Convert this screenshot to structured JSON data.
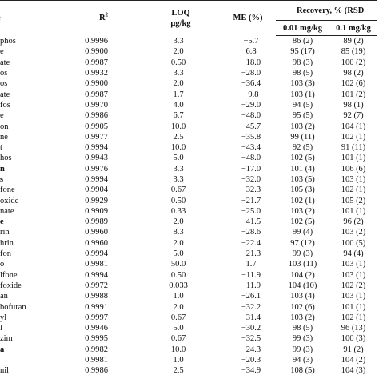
{
  "header": {
    "r2_base": "R",
    "r2_sup": "2",
    "loq_line1": "LOQ",
    "loq_line2": "μg/kg",
    "me": "ME (%)",
    "recovery_group": "Recovery, % (RSD",
    "rec_001": "0.01 mg/kg",
    "rec_01": "0.1 mg/kg",
    "name_partial": "e"
  },
  "rows": [
    {
      "name": "phos",
      "bold": false,
      "r2": "0.9996",
      "loq": "3.3",
      "me": "−5.7",
      "rec1": "86 (2)",
      "rec2": "89 (2)"
    },
    {
      "name": "e",
      "bold": false,
      "r2": "0.9900",
      "loq": "2.0",
      "me": "6.8",
      "rec1": "95 (17)",
      "rec2": "85 (19)"
    },
    {
      "name": "ate",
      "bold": false,
      "r2": "0.9987",
      "loq": "0.50",
      "me": "−18.0",
      "rec1": "98 (3)",
      "rec2": "100 (2)"
    },
    {
      "name": "os",
      "bold": false,
      "r2": "0.9932",
      "loq": "3.3",
      "me": "−28.0",
      "rec1": "98 (5)",
      "rec2": "98 (2)"
    },
    {
      "name": "os",
      "bold": false,
      "r2": "0.9900",
      "loq": "2.0",
      "me": "−36.4",
      "rec1": "103 (3)",
      "rec2": "102 (6)"
    },
    {
      "name": "ate",
      "bold": false,
      "r2": "0.9987",
      "loq": "1.7",
      "me": "−9.8",
      "rec1": "103 (1)",
      "rec2": "101 (2)"
    },
    {
      "name": "fos",
      "bold": false,
      "r2": "0.9970",
      "loq": "4.0",
      "me": "−29.0",
      "rec1": "94 (5)",
      "rec2": "98 (1)"
    },
    {
      "name": "e",
      "bold": false,
      "r2": "0.9986",
      "loq": "6.7",
      "me": "−48.0",
      "rec1": "95 (5)",
      "rec2": "92 (7)"
    },
    {
      "name": "on",
      "bold": false,
      "r2": "0.9905",
      "loq": "10.0",
      "me": "−45.7",
      "rec1": "103 (2)",
      "rec2": "104 (1)"
    },
    {
      "name": "ne",
      "bold": false,
      "r2": "0.9977",
      "loq": "2.5",
      "me": "−35.8",
      "rec1": "99 (11)",
      "rec2": "102 (1)"
    },
    {
      "name": "t",
      "bold": false,
      "r2": "0.9994",
      "loq": "10.0",
      "me": "−43.4",
      "rec1": "92 (5)",
      "rec2": "91 (11)"
    },
    {
      "name": "hos",
      "bold": false,
      "r2": "0.9943",
      "loq": "5.0",
      "me": "−48.0",
      "rec1": "102 (5)",
      "rec2": "101 (1)"
    },
    {
      "name": "n",
      "bold": true,
      "r2": "0.9976",
      "loq": "3.3",
      "me": "−17.0",
      "rec1": "101 (4)",
      "rec2": "106 (6)"
    },
    {
      "name": "s",
      "bold": true,
      "r2": "0.9994",
      "loq": "3.3",
      "me": "−32.0",
      "rec1": "103 (5)",
      "rec2": "103 (1)"
    },
    {
      "name": "fone",
      "bold": false,
      "r2": "0.9904",
      "loq": "0.67",
      "me": "−32.3",
      "rec1": "105 (3)",
      "rec2": "102 (1)"
    },
    {
      "name": "oxide",
      "bold": false,
      "r2": "0.9929",
      "loq": "0.50",
      "me": "−21.7",
      "rec1": "102 (1)",
      "rec2": "105 (2)"
    },
    {
      "name": "nate",
      "bold": false,
      "r2": "0.9909",
      "loq": "0.33",
      "me": "−25.0",
      "rec1": "103 (2)",
      "rec2": "101 (1)"
    },
    {
      "name": "e",
      "bold": true,
      "r2": "0.9989",
      "loq": "2.0",
      "me": "−41.5",
      "rec1": "102 (5)",
      "rec2": "96 (2)"
    },
    {
      "name": "rin",
      "bold": false,
      "r2": "0.9960",
      "loq": "8.3",
      "me": "−28.6",
      "rec1": "99 (4)",
      "rec2": "103 (2)"
    },
    {
      "name": "hrin",
      "bold": false,
      "r2": "0.9960",
      "loq": "2.0",
      "me": "−22.4",
      "rec1": "97 (12)",
      "rec2": "100 (5)"
    },
    {
      "name": "fon",
      "bold": false,
      "r2": "0.9994",
      "loq": "5.0",
      "me": "−21.3",
      "rec1": "99 (3)",
      "rec2": "94 (4)"
    },
    {
      "name": "o",
      "bold": false,
      "r2": "0.9981",
      "loq": "50.0",
      "me": "1.7",
      "rec1": "103 (11)",
      "rec2": "103 (1)"
    },
    {
      "name": "lfone",
      "bold": false,
      "r2": "0.9994",
      "loq": "0.50",
      "me": "−11.9",
      "rec1": "104 (2)",
      "rec2": "103 (1)"
    },
    {
      "name": "foxide",
      "bold": false,
      "r2": "0.9972",
      "loq": "0.033",
      "me": "−11.9",
      "rec1": "104 (10)",
      "rec2": "102 (2)"
    },
    {
      "name": "an",
      "bold": false,
      "r2": "0.9988",
      "loq": "1.0",
      "me": "−26.1",
      "rec1": "103 (4)",
      "rec2": "103 (1)"
    },
    {
      "name": "bofuran",
      "bold": false,
      "r2": "0.9991",
      "loq": "2.0",
      "me": "−32.2",
      "rec1": "102 (6)",
      "rec2": "101 (1)"
    },
    {
      "name": "yl",
      "bold": false,
      "r2": "0.9997",
      "loq": "0.67",
      "me": "−31.4",
      "rec1": "103 (2)",
      "rec2": "102 (1)"
    },
    {
      "name": "l",
      "bold": false,
      "r2": "0.9946",
      "loq": "5.0",
      "me": "−30.2",
      "rec1": "98 (5)",
      "rec2": "96 (13)"
    },
    {
      "name": "zim",
      "bold": false,
      "r2": "0.9995",
      "loq": "0.67",
      "me": "−32.5",
      "rec1": "99 (3)",
      "rec2": "100 (3)"
    },
    {
      "name": "a",
      "bold": true,
      "r2": "0.9982",
      "loq": "10.0",
      "me": "−24.3",
      "rec1": "99 (3)",
      "rec2": "91 (2)"
    },
    {
      "name": "",
      "bold": false,
      "r2": "0.9981",
      "loq": "1.0",
      "me": "−20.3",
      "rec1": "94 (3)",
      "rec2": "104 (2)"
    },
    {
      "name": "nil",
      "bold": false,
      "r2": "0.9986",
      "loq": "2.5",
      "me": "−34.9",
      "rec1": "108 (5)",
      "rec2": "104 (3)"
    }
  ]
}
